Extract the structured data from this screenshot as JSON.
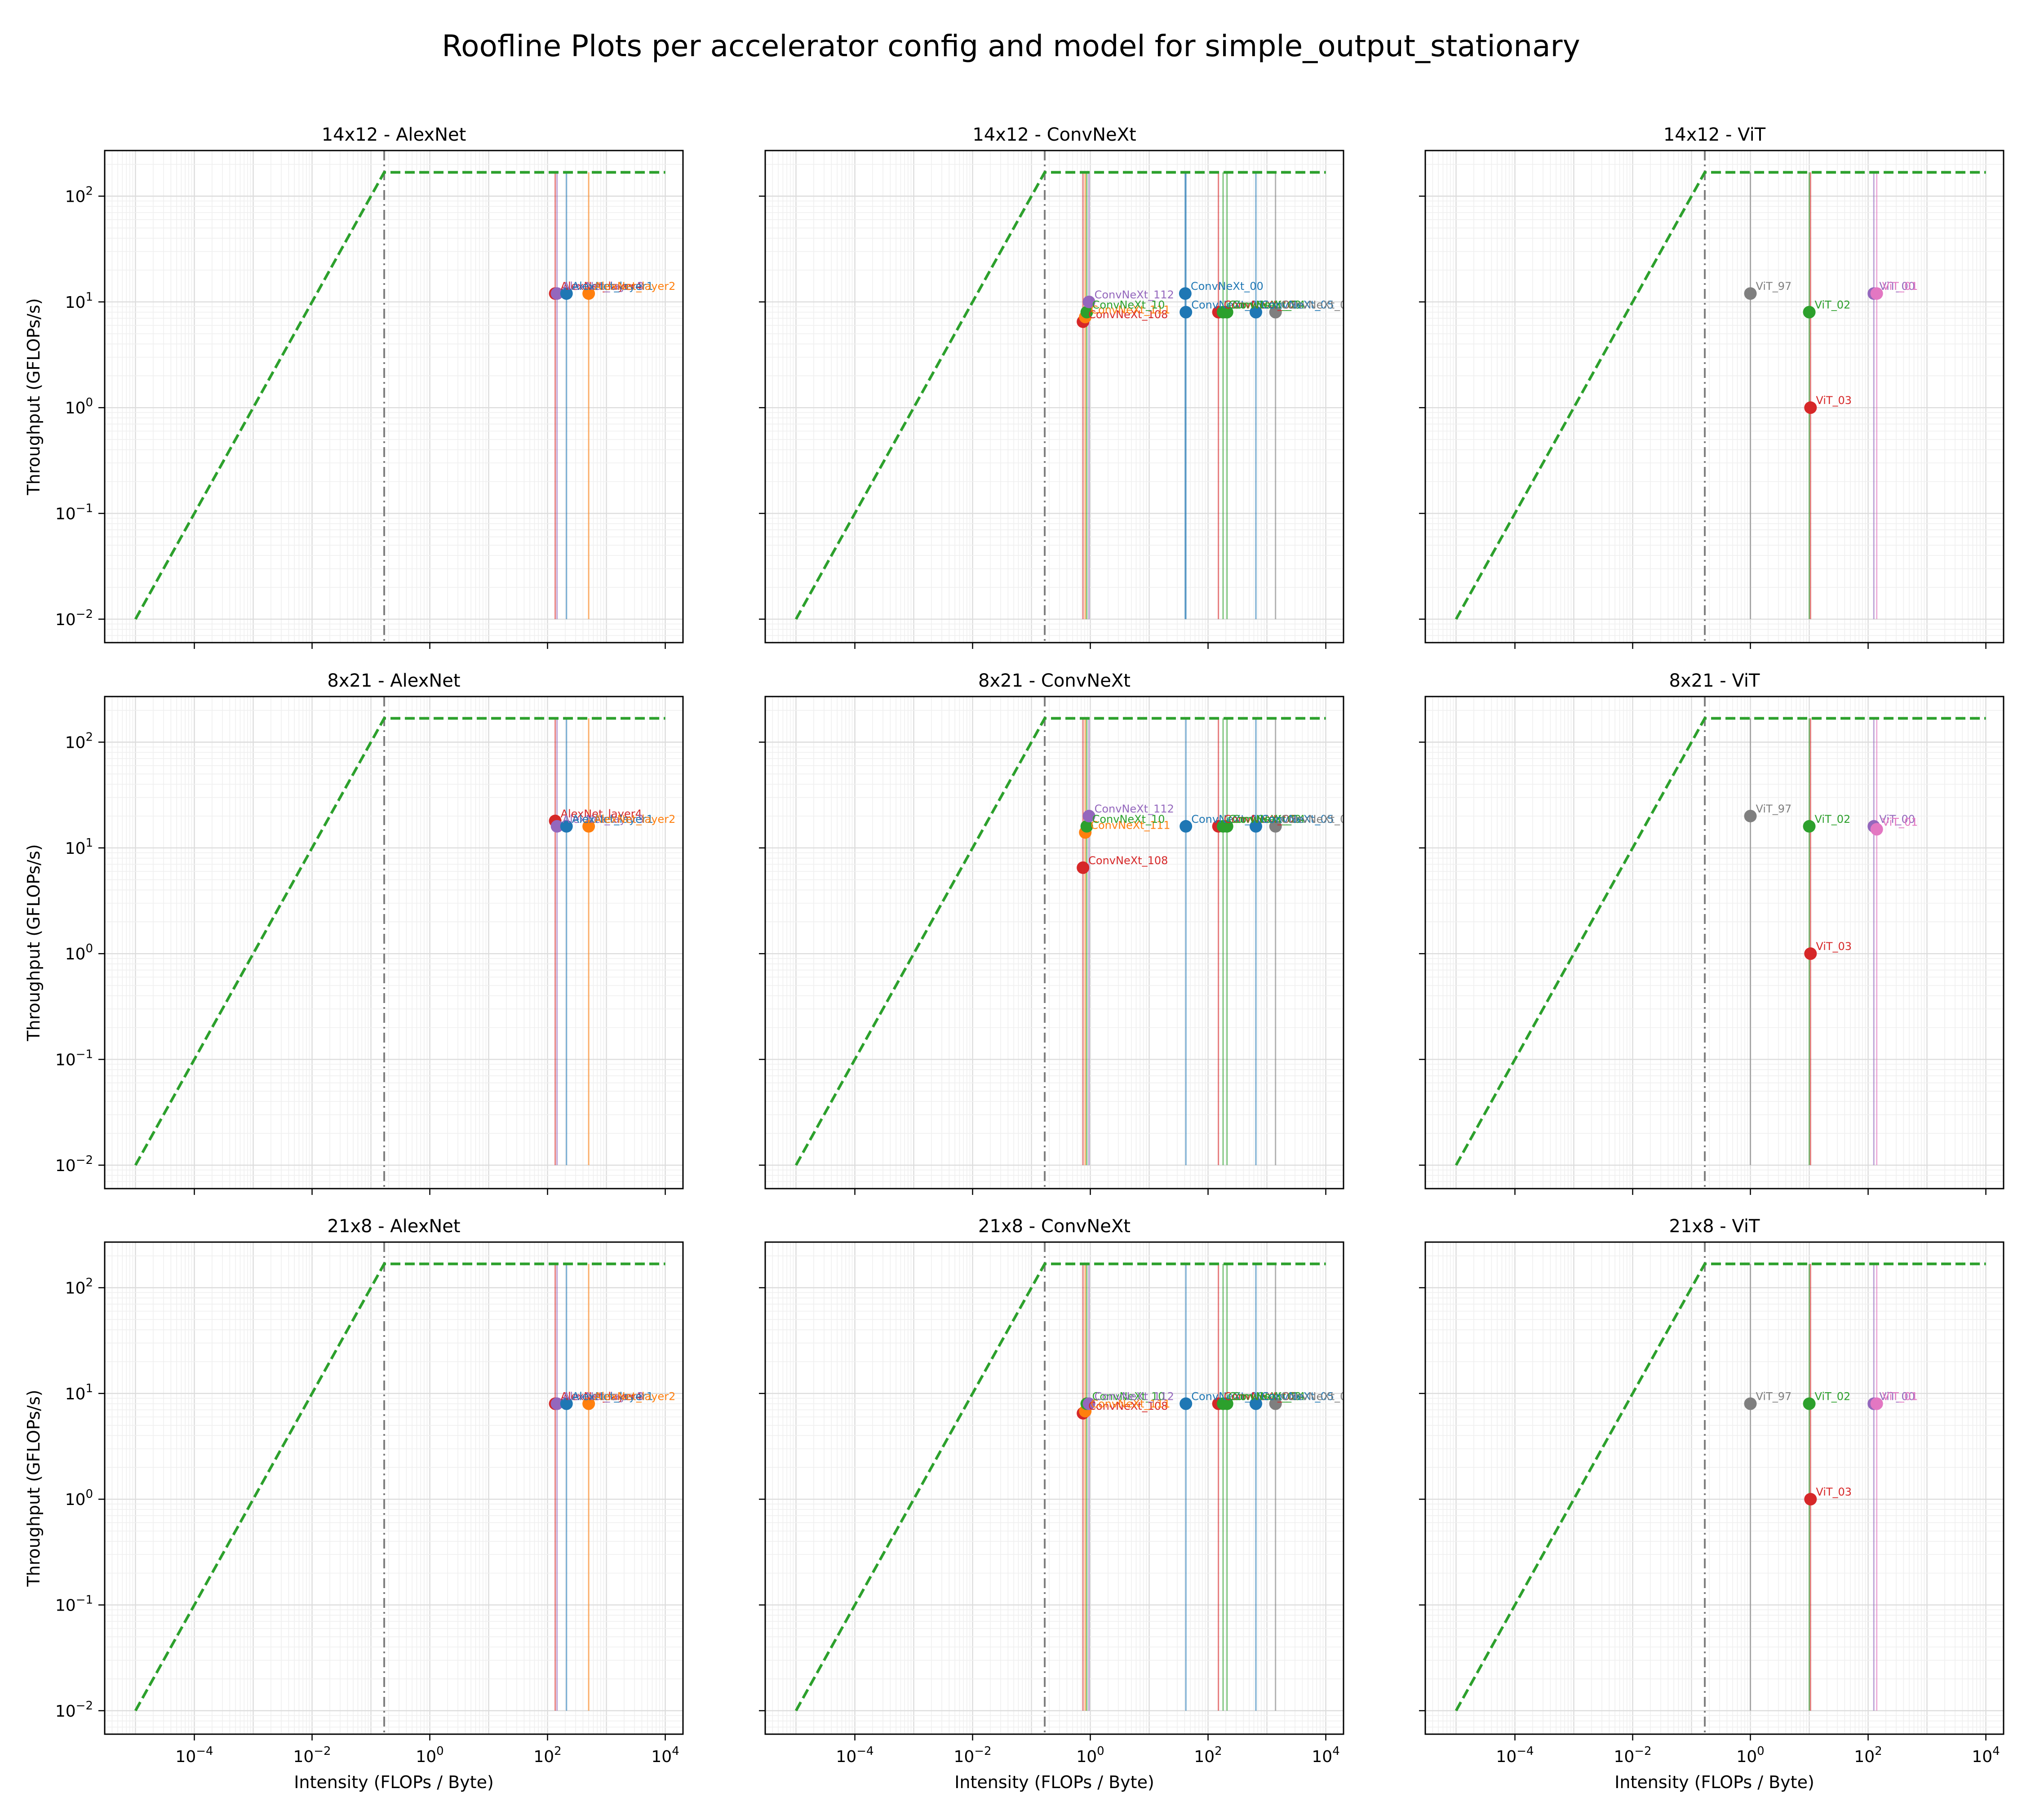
{
  "figure": {
    "title": "Roofline Plots per accelerator config and model for simple_output_stationary"
  },
  "axes_common": {
    "xlabel": "Intensity (FLOPs / Byte)",
    "ylabel": "Throughput (GFLOPs/s)",
    "xscale": "log",
    "yscale": "log",
    "xlim": [
      3e-06,
      20000
    ],
    "ylim": [
      0.006,
      270
    ],
    "xticks": [
      {
        "value": 0.0001,
        "base": "10",
        "exp": "−4"
      },
      {
        "value": 0.01,
        "base": "10",
        "exp": "−2"
      },
      {
        "value": 1,
        "base": "10",
        "exp": "0"
      },
      {
        "value": 100,
        "base": "10",
        "exp": "2"
      },
      {
        "value": 10000,
        "base": "10",
        "exp": "4"
      }
    ],
    "yticks": [
      {
        "value": 0.01,
        "base": "10",
        "exp": "−2"
      },
      {
        "value": 0.1,
        "base": "10",
        "exp": "−1"
      },
      {
        "value": 1,
        "base": "10",
        "exp": "0"
      },
      {
        "value": 10,
        "base": "10",
        "exp": "1"
      },
      {
        "value": 100,
        "base": "10",
        "exp": "2"
      }
    ],
    "grid": true
  },
  "colors": {
    "roof": "#2ca02c",
    "ridge": "#7f7f7f",
    "palette": [
      "#1f77b4",
      "#ff7f0e",
      "#2ca02c",
      "#d62728",
      "#9467bd",
      "#8c564b",
      "#e377c2",
      "#7f7f7f"
    ]
  },
  "chart_data": [
    {
      "type": "scatter",
      "title": "14x12 - AlexNet",
      "roof": {
        "peak": 168,
        "ridge": 0.168,
        "x_start": 1e-05,
        "x_end": 10000
      },
      "points": [
        {
          "x": 135,
          "y": 12,
          "label": "AlexNet_layer4",
          "color": "#d62728"
        },
        {
          "x": 145,
          "y": 12,
          "label": "AlexNet_layer3",
          "color": "#9467bd"
        },
        {
          "x": 210,
          "y": 12,
          "label": "AlexNet_layer1",
          "color": "#1f77b4"
        },
        {
          "x": 500,
          "y": 12,
          "label": "AlexNet_layer2",
          "color": "#ff7f0e"
        }
      ]
    },
    {
      "type": "scatter",
      "title": "14x12 - ConvNeXt",
      "roof": {
        "peak": 168,
        "ridge": 0.168,
        "x_start": 1e-05,
        "x_end": 10000
      },
      "points": [
        {
          "x": 0.75,
          "y": 6.5,
          "label": "ConvNeXt_108",
          "color": "#d62728"
        },
        {
          "x": 0.82,
          "y": 7.2,
          "label": "ConvNeXt_111",
          "color": "#ff7f0e"
        },
        {
          "x": 0.87,
          "y": 8,
          "label": "ConvNeXt_10",
          "color": "#2ca02c"
        },
        {
          "x": 0.95,
          "y": 10,
          "label": "ConvNeXt_112",
          "color": "#9467bd"
        },
        {
          "x": 41,
          "y": 12,
          "label": "ConvNeXt_00",
          "color": "#1f77b4"
        },
        {
          "x": 42,
          "y": 8,
          "label": "ConvNeXt_01",
          "color": "#1f77b4"
        },
        {
          "x": 150,
          "y": 8,
          "label": "ConvNeXt_02",
          "color": "#d62728"
        },
        {
          "x": 180,
          "y": 8,
          "label": "ConvNeXt_03",
          "color": "#2ca02c"
        },
        {
          "x": 210,
          "y": 8,
          "label": "ConvNeXt_04",
          "color": "#2ca02c"
        },
        {
          "x": 650,
          "y": 8,
          "label": "ConvNeXt_05",
          "color": "#1f77b4"
        },
        {
          "x": 1400,
          "y": 8,
          "label": "ConvNeXt_06",
          "color": "#7f7f7f"
        }
      ]
    },
    {
      "type": "scatter",
      "title": "14x12 - ViT",
      "roof": {
        "peak": 168,
        "ridge": 0.168,
        "x_start": 1e-05,
        "x_end": 10000
      },
      "points": [
        {
          "x": 1,
          "y": 12,
          "label": "ViT_97",
          "color": "#7f7f7f"
        },
        {
          "x": 10,
          "y": 8,
          "label": "ViT_02",
          "color": "#2ca02c"
        },
        {
          "x": 10.5,
          "y": 1,
          "label": "ViT_03",
          "color": "#d62728"
        },
        {
          "x": 125,
          "y": 12,
          "label": "ViT_00",
          "color": "#9467bd"
        },
        {
          "x": 140,
          "y": 12,
          "label": "ViT_01",
          "color": "#e377c2"
        }
      ]
    },
    {
      "type": "scatter",
      "title": "8x21 - AlexNet",
      "roof": {
        "peak": 168,
        "ridge": 0.168,
        "x_start": 1e-05,
        "x_end": 10000
      },
      "points": [
        {
          "x": 135,
          "y": 18,
          "label": "AlexNet_layer4",
          "color": "#d62728"
        },
        {
          "x": 145,
          "y": 16,
          "label": "AlexNet_layer3",
          "color": "#9467bd"
        },
        {
          "x": 210,
          "y": 16,
          "label": "AlexNet_layer1",
          "color": "#1f77b4"
        },
        {
          "x": 500,
          "y": 16,
          "label": "AlexNet_layer2",
          "color": "#ff7f0e"
        }
      ]
    },
    {
      "type": "scatter",
      "title": "8x21 - ConvNeXt",
      "roof": {
        "peak": 168,
        "ridge": 0.168,
        "x_start": 1e-05,
        "x_end": 10000
      },
      "points": [
        {
          "x": 0.75,
          "y": 6.5,
          "label": "ConvNeXt_108",
          "color": "#d62728"
        },
        {
          "x": 0.82,
          "y": 14,
          "label": "ConvNeXt_111",
          "color": "#ff7f0e"
        },
        {
          "x": 0.87,
          "y": 16,
          "label": "ConvNeXt_10",
          "color": "#2ca02c"
        },
        {
          "x": 0.95,
          "y": 20,
          "label": "ConvNeXt_112",
          "color": "#9467bd"
        },
        {
          "x": 42,
          "y": 16,
          "label": "ConvNeXt_00",
          "color": "#1f77b4"
        },
        {
          "x": 150,
          "y": 16,
          "label": "ConvNeXt_02",
          "color": "#d62728"
        },
        {
          "x": 180,
          "y": 16,
          "label": "ConvNeXt_03",
          "color": "#2ca02c"
        },
        {
          "x": 210,
          "y": 16,
          "label": "ConvNeXt_04",
          "color": "#2ca02c"
        },
        {
          "x": 650,
          "y": 16,
          "label": "ConvNeXt_05",
          "color": "#1f77b4"
        },
        {
          "x": 1400,
          "y": 16,
          "label": "ConvNeXt_06",
          "color": "#7f7f7f"
        }
      ]
    },
    {
      "type": "scatter",
      "title": "8x21 - ViT",
      "roof": {
        "peak": 168,
        "ridge": 0.168,
        "x_start": 1e-05,
        "x_end": 10000
      },
      "points": [
        {
          "x": 1,
          "y": 20,
          "label": "ViT_97",
          "color": "#7f7f7f"
        },
        {
          "x": 10,
          "y": 16,
          "label": "ViT_02",
          "color": "#2ca02c"
        },
        {
          "x": 10.5,
          "y": 1,
          "label": "ViT_03",
          "color": "#d62728"
        },
        {
          "x": 125,
          "y": 16,
          "label": "ViT_00",
          "color": "#9467bd"
        },
        {
          "x": 140,
          "y": 15,
          "label": "ViT_01",
          "color": "#e377c2"
        }
      ]
    },
    {
      "type": "scatter",
      "title": "21x8 - AlexNet",
      "roof": {
        "peak": 168,
        "ridge": 0.168,
        "x_start": 1e-05,
        "x_end": 10000
      },
      "points": [
        {
          "x": 135,
          "y": 8,
          "label": "AlexNet_layer4",
          "color": "#d62728"
        },
        {
          "x": 145,
          "y": 8,
          "label": "AlexNet_layer3",
          "color": "#9467bd"
        },
        {
          "x": 210,
          "y": 8,
          "label": "AlexNet_layer1",
          "color": "#1f77b4"
        },
        {
          "x": 500,
          "y": 8,
          "label": "AlexNet_layer2",
          "color": "#ff7f0e"
        }
      ]
    },
    {
      "type": "scatter",
      "title": "21x8 - ConvNeXt",
      "roof": {
        "peak": 168,
        "ridge": 0.168,
        "x_start": 1e-05,
        "x_end": 10000
      },
      "points": [
        {
          "x": 0.75,
          "y": 6.5,
          "label": "ConvNeXt_108",
          "color": "#d62728"
        },
        {
          "x": 0.82,
          "y": 6.8,
          "label": "ConvNeXt_111",
          "color": "#ff7f0e"
        },
        {
          "x": 0.87,
          "y": 8,
          "label": "ConvNeXt_10",
          "color": "#2ca02c"
        },
        {
          "x": 0.95,
          "y": 8,
          "label": "ConvNeXt_112",
          "color": "#9467bd"
        },
        {
          "x": 42,
          "y": 8,
          "label": "ConvNeXt_00",
          "color": "#1f77b4"
        },
        {
          "x": 150,
          "y": 8,
          "label": "ConvNeXt_02",
          "color": "#d62728"
        },
        {
          "x": 180,
          "y": 8,
          "label": "ConvNeXt_03",
          "color": "#2ca02c"
        },
        {
          "x": 210,
          "y": 8,
          "label": "ConvNeXt_04",
          "color": "#2ca02c"
        },
        {
          "x": 650,
          "y": 8,
          "label": "ConvNeXt_05",
          "color": "#1f77b4"
        },
        {
          "x": 1400,
          "y": 8,
          "label": "ConvNeXt_06",
          "color": "#7f7f7f"
        }
      ]
    },
    {
      "type": "scatter",
      "title": "21x8 - ViT",
      "roof": {
        "peak": 168,
        "ridge": 0.168,
        "x_start": 1e-05,
        "x_end": 10000
      },
      "points": [
        {
          "x": 1,
          "y": 8,
          "label": "ViT_97",
          "color": "#7f7f7f"
        },
        {
          "x": 10,
          "y": 8,
          "label": "ViT_02",
          "color": "#2ca02c"
        },
        {
          "x": 10.5,
          "y": 1,
          "label": "ViT_03",
          "color": "#d62728"
        },
        {
          "x": 125,
          "y": 8,
          "label": "ViT_00",
          "color": "#9467bd"
        },
        {
          "x": 140,
          "y": 8,
          "label": "ViT_01",
          "color": "#e377c2"
        }
      ]
    }
  ]
}
